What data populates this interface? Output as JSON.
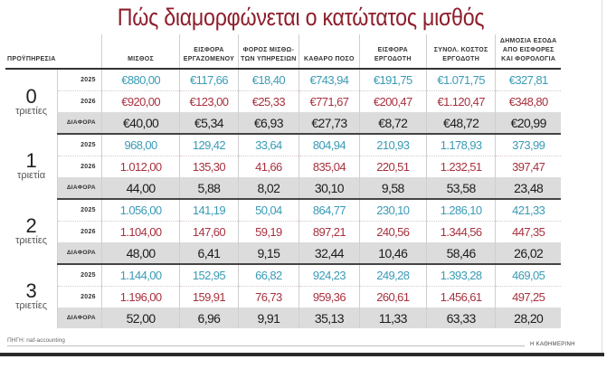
{
  "title": "Πώς διαμορφώνεται ο κατώτατος μισθός",
  "header": {
    "col0": "ΠΡΟΫΠΗΡΕΣΙΑ",
    "columns": [
      "ΜΙΣΘΟΣ",
      "ΕΙΣΦΟΡΑ ΕΡΓΑΖΟΜΕΝΟΥ",
      "ΦΟΡΟΣ ΜΙΣΘΩ-ΤΩΝ ΥΠΗΡΕΣΙΩΝ",
      "ΚΑΘΑΡΟ ΠΟΣΟ",
      "ΕΙΣΦΟΡΑ ΕΡΓΟΔΟΤΗ",
      "ΣΥΝΟΛ. ΚΟΣΤΟΣ ΕΡΓΟΔΟΤΗ",
      "ΔΗΜΟΣΙΑ ΕΣΟΔΑ ΑΠΟ ΕΙΣΦΟΡΕΣ ΚΑΙ ΦΟΡΟΛΟΓΙΑ"
    ]
  },
  "row_labels": {
    "y2025": "2025",
    "y2026": "2026",
    "diff": "ΔΙΑΦΟΡΑ"
  },
  "groups": [
    {
      "num": "0",
      "label": "τριετίες",
      "y2025": [
        "€880,00",
        "€117,66",
        "€18,40",
        "€743,94",
        "€191,75",
        "€1.071,75",
        "€327,81"
      ],
      "y2026": [
        "€920,00",
        "€123,00",
        "€25,33",
        "€771,67",
        "€200,47",
        "€1.120,47",
        "€348,80"
      ],
      "diff": [
        "€40,00",
        "€5,34",
        "€6,93",
        "€27,73",
        "€8,72",
        "€48,72",
        "€20,99"
      ]
    },
    {
      "num": "1",
      "label": "τριετία",
      "y2025": [
        "968,00",
        "129,42",
        "33,64",
        "804,94",
        "210,93",
        "1.178,93",
        "373,99"
      ],
      "y2026": [
        "1.012,00",
        "135,30",
        "41,66",
        "835,04",
        "220,51",
        "1.232,51",
        "397,47"
      ],
      "diff": [
        "44,00",
        "5,88",
        "8,02",
        "30,10",
        "9,58",
        "53,58",
        "23,48"
      ]
    },
    {
      "num": "2",
      "label": "τριετίες",
      "y2025": [
        "1.056,00",
        "141,19",
        "50,04",
        "864,77",
        "230,10",
        "1.286,10",
        "421,33"
      ],
      "y2026": [
        "1.104,00",
        "147,60",
        "59,19",
        "897,21",
        "240,56",
        "1.344,56",
        "447,35"
      ],
      "diff": [
        "48,00",
        "6,41",
        "9,15",
        "32,44",
        "10,46",
        "58,46",
        "26,02"
      ]
    },
    {
      "num": "3",
      "label": "τριετίες",
      "y2025": [
        "1.144,00",
        "152,95",
        "66,82",
        "924,23",
        "249,28",
        "1.393,28",
        "469,05"
      ],
      "y2026": [
        "1.196,00",
        "159,91",
        "76,73",
        "959,36",
        "260,61",
        "1.456,61",
        "497,25"
      ],
      "diff": [
        "52,00",
        "6,96",
        "9,91",
        "35,13",
        "11,33",
        "63,33",
        "28,20"
      ]
    }
  ],
  "colors": {
    "title": "#8e1e2c",
    "year2025": "#3a9bb6",
    "year2026": "#a8313f",
    "diff_bg": "#dcdcdc"
  },
  "footer": {
    "source": "ΠΗΓΗ: naf-accounting",
    "brand": "Η ΚΑΘΗΜΕΡΙΝΗ"
  }
}
